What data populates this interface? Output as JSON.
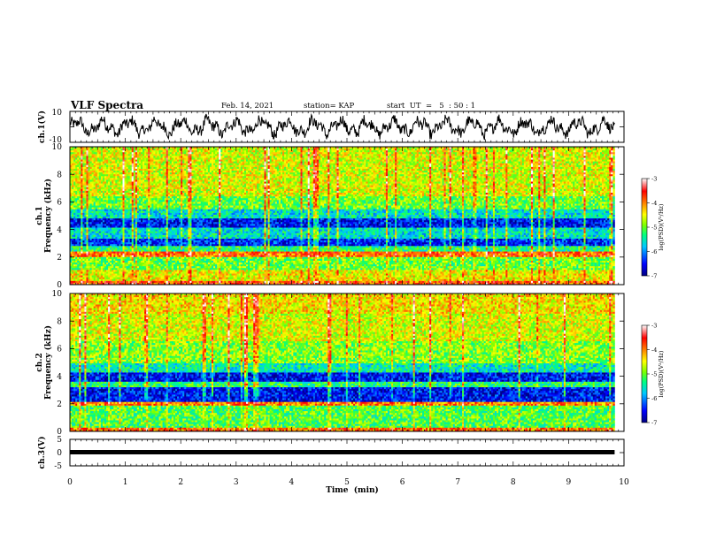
{
  "header": {
    "title": "VLF Spectra",
    "date": "Feb. 14, 2021",
    "station": "station= KAP",
    "start_ut": "start  UT  =   5  : 50 : 1"
  },
  "chart_data": [
    {
      "name": "ch1-waveform",
      "type": "line",
      "ylabel": "ch.1(V)",
      "ylim": [
        -10,
        10
      ],
      "ytick_labels": [
        "10",
        "-10"
      ],
      "xlim": [
        0,
        10
      ],
      "x_end_min": 9.83
    },
    {
      "name": "ch1-spectrogram",
      "type": "heatmap",
      "ylabel": "ch.1\nFrequency  (kHz)",
      "ylim": [
        0,
        10
      ],
      "yticks": [
        0,
        2,
        4,
        6,
        8,
        10
      ],
      "xlim": [
        0,
        10
      ],
      "x_end_min": 9.83,
      "colorbar": {
        "label": "log(PSD)(V²/Hz)",
        "range": [
          -7,
          -3
        ],
        "ticks": [
          -7,
          -6,
          -5,
          -4,
          -3
        ],
        "tick_labels": [
          "-7",
          "-6",
          "-5",
          "-4",
          "-3"
        ]
      },
      "band_levels": [
        {
          "f": [
            0.0,
            0.3
          ],
          "v": -3.8
        },
        {
          "f": [
            0.3,
            1.0
          ],
          "v": -4.5
        },
        {
          "f": [
            1.0,
            2.0
          ],
          "v": -5.0
        },
        {
          "f": [
            2.0,
            2.4
          ],
          "v": -3.9
        },
        {
          "f": [
            2.4,
            2.8
          ],
          "v": -5.3
        },
        {
          "f": [
            2.8,
            3.3
          ],
          "v": -6.4
        },
        {
          "f": [
            3.3,
            4.2
          ],
          "v": -5.6
        },
        {
          "f": [
            4.2,
            4.8
          ],
          "v": -6.5
        },
        {
          "f": [
            4.8,
            5.5
          ],
          "v": -5.6
        },
        {
          "f": [
            5.5,
            6.4
          ],
          "v": -5.0
        },
        {
          "f": [
            6.4,
            8.0
          ],
          "v": -4.6
        },
        {
          "f": [
            8.0,
            10.0
          ],
          "v": -4.6
        }
      ]
    },
    {
      "name": "ch2-spectrogram",
      "type": "heatmap",
      "ylabel": "ch.2\nFrequency  (kHz)",
      "ylim": [
        0,
        10
      ],
      "yticks": [
        0,
        2,
        4,
        6,
        8,
        10
      ],
      "xlim": [
        0,
        10
      ],
      "x_end_min": 9.83,
      "colorbar": {
        "label": "log(PSD)(V²/Hz)",
        "range": [
          -7,
          -3
        ],
        "ticks": [
          -7,
          -6,
          -5,
          -4,
          -3
        ],
        "tick_labels": [
          "-7",
          "-6",
          "-5",
          "-4",
          "-3"
        ]
      },
      "band_levels": [
        {
          "f": [
            0.0,
            0.3
          ],
          "v": -3.9
        },
        {
          "f": [
            0.3,
            1.9
          ],
          "v": -5.1
        },
        {
          "f": [
            1.9,
            2.1
          ],
          "v": -4.0
        },
        {
          "f": [
            2.1,
            3.2
          ],
          "v": -6.5
        },
        {
          "f": [
            3.2,
            3.6
          ],
          "v": -5.3
        },
        {
          "f": [
            3.6,
            4.3
          ],
          "v": -6.5
        },
        {
          "f": [
            4.3,
            5.0
          ],
          "v": -5.5
        },
        {
          "f": [
            5.0,
            6.5
          ],
          "v": -4.9
        },
        {
          "f": [
            6.5,
            8.5
          ],
          "v": -4.6
        },
        {
          "f": [
            8.5,
            10.0
          ],
          "v": -4.4
        }
      ]
    },
    {
      "name": "ch3-waveform",
      "type": "line",
      "ylabel": "ch.3(V)",
      "ylim": [
        -5,
        5
      ],
      "ytick_labels": [
        "5",
        "0",
        "-5"
      ],
      "xlim": [
        0,
        10
      ],
      "x_end_min": 9.83,
      "xlabel": "Time  (min)",
      "xticks": [
        0,
        1,
        2,
        3,
        4,
        5,
        6,
        7,
        8,
        9,
        10
      ],
      "xtick_labels": [
        "0",
        "1",
        "2",
        "3",
        "4",
        "5",
        "6",
        "7",
        "8",
        "9",
        "10"
      ]
    }
  ],
  "colors": {
    "colormap": [
      "#000080",
      "#0000ff",
      "#00c8ff",
      "#00ff80",
      "#7cff00",
      "#ffff00",
      "#ff8000",
      "#ff0000",
      "#ffffff"
    ]
  }
}
